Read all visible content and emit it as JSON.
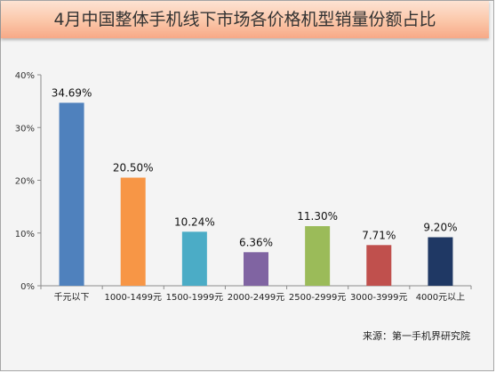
{
  "title": "4月中国整体手机线下市场各价格机型销量份额占比",
  "source": "来源：第一手机界研究院",
  "chart_data": {
    "type": "bar",
    "title": "4月中国整体手机线下市场各价格机型销量份额占比",
    "categories": [
      "千元以下",
      "1000-1499元",
      "1500-1999元",
      "2000-2499元",
      "2500-2999元",
      "3000-3999元",
      "4000元以上"
    ],
    "values": [
      34.69,
      20.5,
      10.24,
      6.36,
      11.3,
      7.71,
      9.2
    ],
    "value_labels": [
      "34.69%",
      "20.50%",
      "10.24%",
      "6.36%",
      "11.30%",
      "7.71%",
      "9.20%"
    ],
    "colors": [
      "#4f81bd",
      "#f79646",
      "#4bacc6",
      "#8064a2",
      "#9bbb59",
      "#c0504d",
      "#1f3864"
    ],
    "yticks": [
      "0%",
      "10%",
      "20%",
      "30%",
      "40%"
    ],
    "ylim": [
      0,
      40
    ],
    "xlabel": "",
    "ylabel": "",
    "grid": false,
    "legend": "none"
  }
}
